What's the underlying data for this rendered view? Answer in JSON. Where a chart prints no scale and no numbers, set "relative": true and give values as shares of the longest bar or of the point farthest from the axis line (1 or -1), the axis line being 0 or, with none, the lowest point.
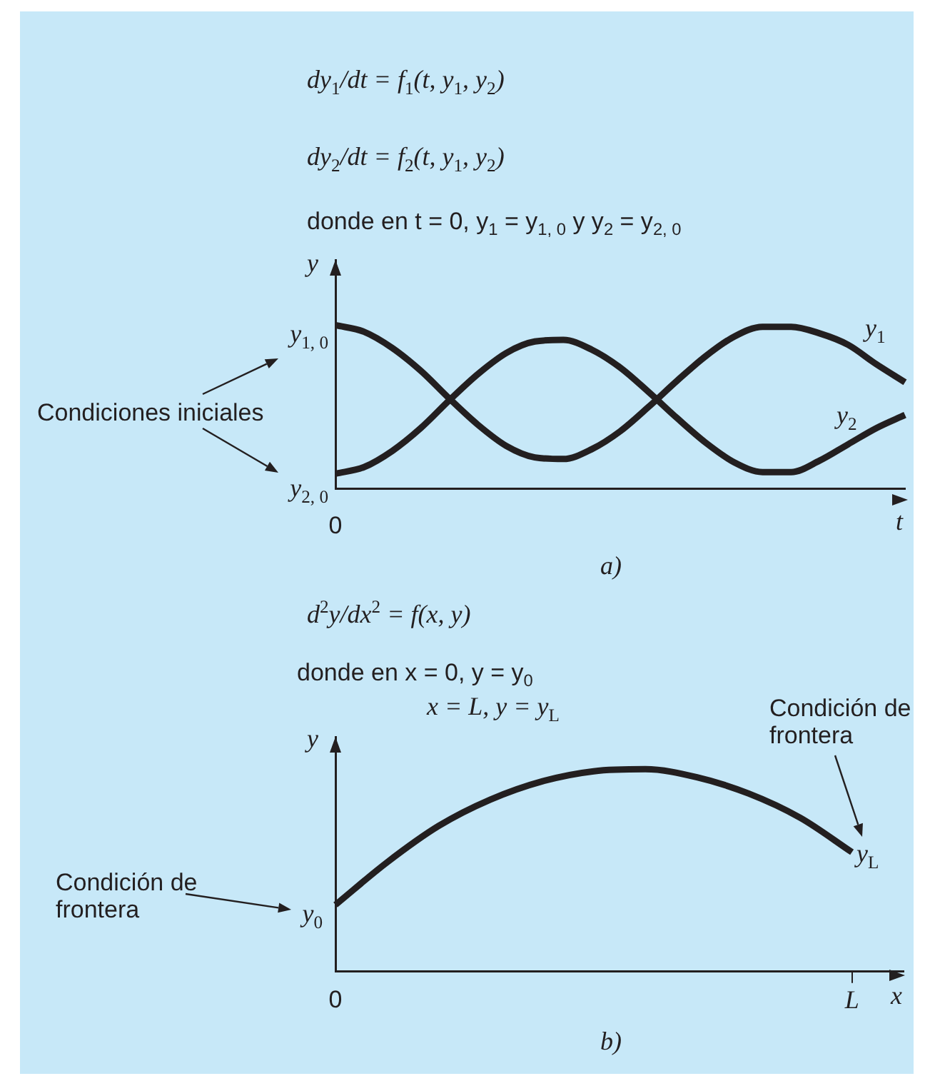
{
  "chart_data": [
    {
      "type": "line",
      "relative": true,
      "xlabel": "t",
      "ylabel": "y",
      "grid": false,
      "marker": "none",
      "line_style": "solid",
      "categories": [
        null,
        null,
        null,
        null,
        null,
        null,
        null,
        null,
        null,
        null,
        null,
        null,
        null,
        null,
        null,
        null,
        null,
        null,
        null,
        null,
        null
      ],
      "series": [
        {
          "name": "y$_{1}$",
          "color": "#231f20",
          "values": [
            1.0,
            0.96,
            0.86,
            0.72,
            0.55,
            0.39,
            0.26,
            0.19,
            0.18,
            0.24,
            0.35,
            0.5,
            0.66,
            0.81,
            0.93,
            0.99,
            0.99,
            0.95,
            0.88,
            0.76,
            0.65
          ]
        },
        {
          "name": "y$_{2}$",
          "color": "#231f20",
          "values": [
            0.09,
            0.13,
            0.23,
            0.37,
            0.54,
            0.7,
            0.83,
            0.9,
            0.91,
            0.85,
            0.74,
            0.59,
            0.43,
            0.28,
            0.16,
            0.1,
            0.1,
            0.17,
            0.27,
            0.37,
            0.45
          ]
        }
      ],
      "annotations": [
        "dy$_{1}$/dt = f$_{1}$(t, y$_{1}$, y$_{2}$)",
        "dy$_{2}$/dt = f$_{2}$(t, y$_{1}$, y$_{2}$)",
        "donde en t = 0, y$_{1}$ = y$_{1, 0}$ y y$_{2}$ = y$_{2, 0}$",
        "y$_{1, 0}$",
        "y$_{2, 0}$",
        "Condiciones iniciales",
        "0",
        "a)"
      ]
    },
    {
      "type": "line",
      "relative": true,
      "xlabel": "x",
      "ylabel": "y",
      "grid": false,
      "marker": "none",
      "line_style": "solid",
      "categories": [
        "0",
        null,
        null,
        null,
        null,
        null,
        null,
        null,
        null,
        null,
        "L",
        null
      ],
      "series": [
        {
          "color": "#231f20",
          "values": [
            0.33,
            0.54,
            0.72,
            0.85,
            0.94,
            0.99,
            1.0,
            0.96,
            0.88,
            0.76,
            0.59,
            null
          ]
        }
      ],
      "annotations": [
        "d$^{2}$y/dx$^{2}$ = f(x, y)",
        "donde en x = 0, y = y$_{0}$",
        "x = L, y = y$_{L}$",
        "Condición de frontera",
        "y$_{0}$",
        "Condición de frontera",
        "y$_{L}$",
        "b)"
      ]
    }
  ]
}
